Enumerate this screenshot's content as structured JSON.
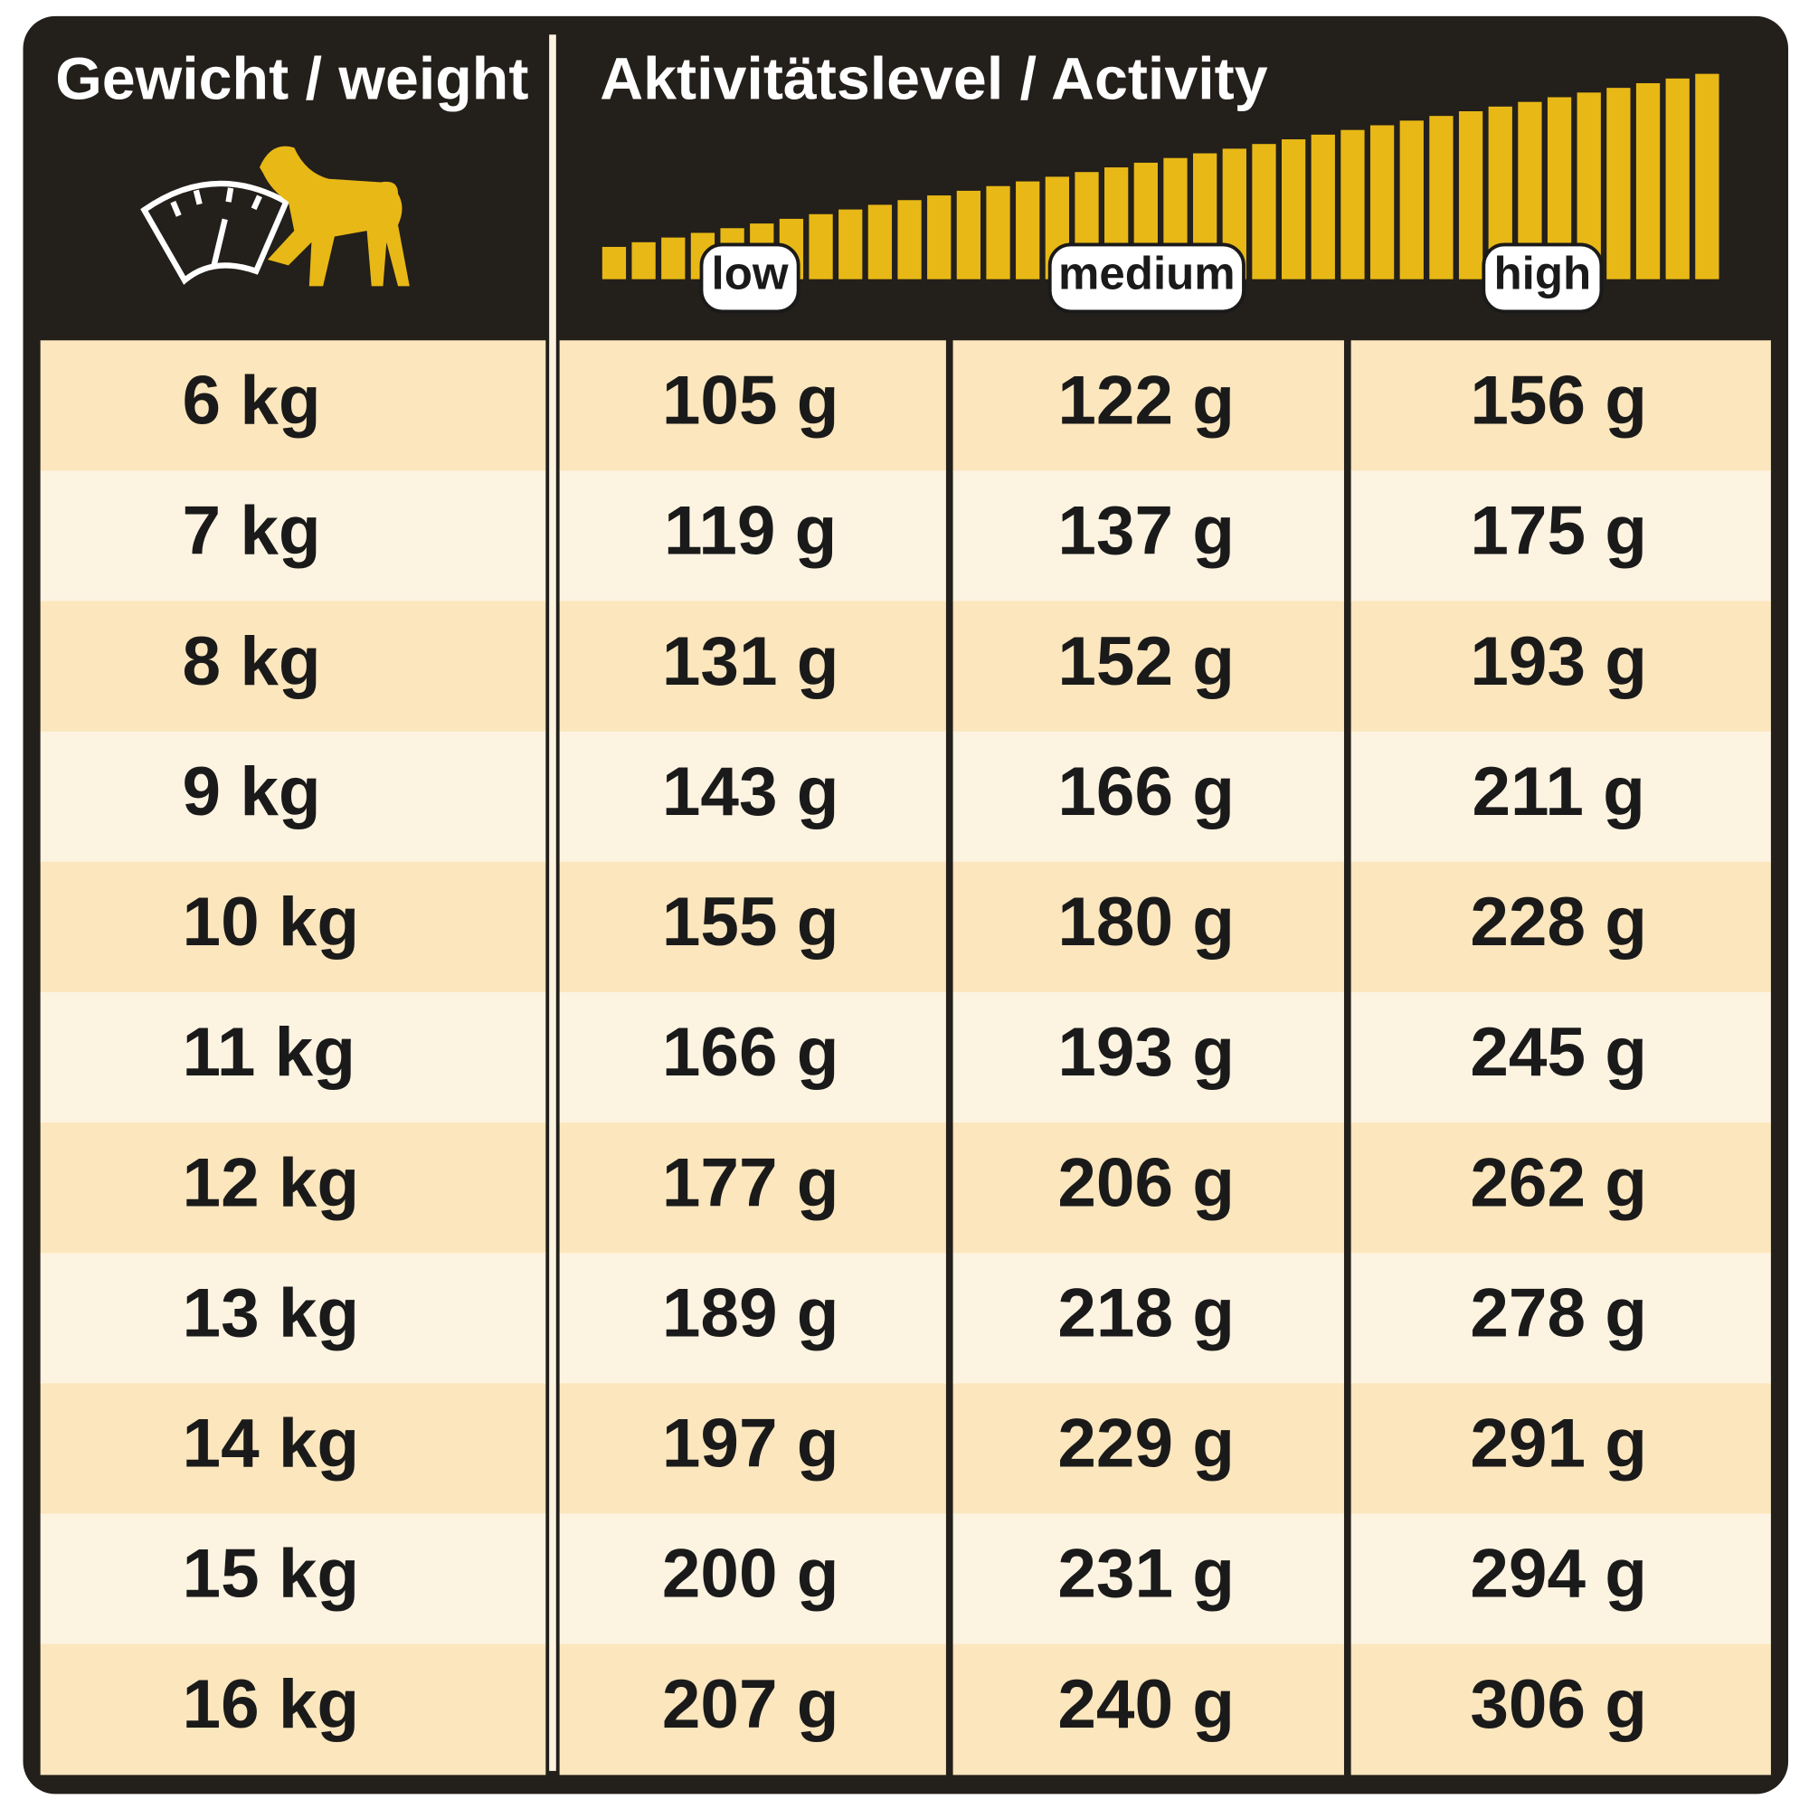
{
  "header": {
    "weight_title": "Gewicht / weight",
    "activity_title": "Aktivitätslevel / Activity",
    "levels": [
      "low",
      "medium",
      "high"
    ]
  },
  "table": {
    "rows": [
      [
        "6 kg",
        "105 g",
        "122 g",
        "156 g"
      ],
      [
        "7 kg",
        "119 g",
        "137 g",
        "175 g"
      ],
      [
        "8 kg",
        "131 g",
        "152 g",
        "193 g"
      ],
      [
        "9 kg",
        "143 g",
        "166 g",
        "211 g"
      ],
      [
        "10 kg",
        "155 g",
        "180 g",
        "228 g"
      ],
      [
        "11 kg",
        "166 g",
        "193 g",
        "245 g"
      ],
      [
        "12 kg",
        "177 g",
        "206 g",
        "262 g"
      ],
      [
        "13 kg",
        "189 g",
        "218 g",
        "278 g"
      ],
      [
        "14 kg",
        "197 g",
        "229 g",
        "291 g"
      ],
      [
        "15 kg",
        "200 g",
        "231 g",
        "294 g"
      ],
      [
        "16 kg",
        "207 g",
        "240 g",
        "306 g"
      ]
    ]
  }
}
